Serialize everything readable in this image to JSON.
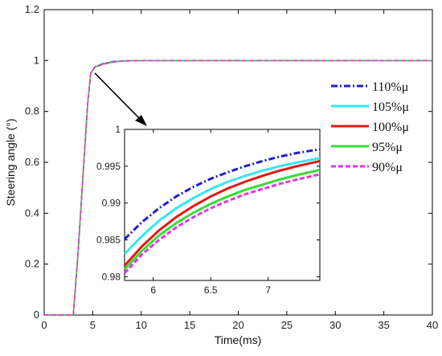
{
  "chart_data": {
    "type": "line",
    "title": "",
    "xlabel": "Time(ms)",
    "ylabel": "Steering angle (°)",
    "xlim": [
      0,
      40
    ],
    "ylim": [
      0,
      1.2
    ],
    "xticks": [
      0,
      5,
      10,
      15,
      20,
      25,
      30,
      35,
      40
    ],
    "yticks": [
      0,
      0.2,
      0.4,
      0.6,
      0.8,
      1,
      1.2
    ],
    "grid": false,
    "legend_position": "right",
    "series": [
      {
        "name": "110%μ",
        "color": "#1f1fd0",
        "dash": "dashdot",
        "x": [
          0,
          3,
          3.5,
          4,
          4.5,
          4.8,
          5.2,
          6,
          7,
          8,
          10,
          15,
          20,
          30,
          40
        ],
        "y": [
          0,
          0,
          0.25,
          0.55,
          0.84,
          0.95,
          0.975,
          0.988,
          0.996,
          0.999,
          1,
          1,
          1,
          1,
          1
        ]
      },
      {
        "name": "105%μ",
        "color": "#33e8f2",
        "dash": "solid",
        "x": [
          0,
          3,
          3.5,
          4,
          4.5,
          4.8,
          5.2,
          6,
          7,
          8,
          10,
          15,
          20,
          30,
          40
        ],
        "y": [
          0,
          0,
          0.25,
          0.55,
          0.84,
          0.95,
          0.975,
          0.987,
          0.995,
          0.999,
          1,
          1,
          1,
          1,
          1
        ]
      },
      {
        "name": "100%μ",
        "color": "#e61717",
        "dash": "solid",
        "x": [
          0,
          3,
          3.5,
          4,
          4.5,
          4.8,
          5.2,
          6,
          7,
          8,
          10,
          15,
          20,
          30,
          40
        ],
        "y": [
          0,
          0,
          0.25,
          0.55,
          0.84,
          0.95,
          0.974,
          0.986,
          0.994,
          0.998,
          1,
          1,
          1,
          1,
          1
        ]
      },
      {
        "name": "95%μ",
        "color": "#33e033",
        "dash": "solid",
        "x": [
          0,
          3,
          3.5,
          4,
          4.5,
          4.8,
          5.2,
          6,
          7,
          8,
          10,
          15,
          20,
          30,
          40
        ],
        "y": [
          0,
          0,
          0.25,
          0.55,
          0.84,
          0.95,
          0.974,
          0.985,
          0.993,
          0.998,
          1,
          1,
          1,
          1,
          1
        ]
      },
      {
        "name": "90%μ",
        "color": "#e633e6",
        "dash": "dashed",
        "x": [
          0,
          3,
          3.5,
          4,
          4.5,
          4.8,
          5.2,
          6,
          7,
          8,
          10,
          15,
          20,
          30,
          40
        ],
        "y": [
          0,
          0,
          0.25,
          0.55,
          0.84,
          0.95,
          0.973,
          0.984,
          0.993,
          0.998,
          1,
          1,
          1,
          1,
          1
        ]
      }
    ],
    "inset": {
      "xlim": [
        5.75,
        7.45
      ],
      "ylim": [
        0.9795,
        1.0
      ],
      "xticks": [
        6,
        6.5,
        7
      ],
      "yticks": [
        0.98,
        0.985,
        0.99,
        0.995,
        1
      ],
      "ytick_labels": [
        "0.98",
        "0.985",
        "0.99",
        "0.995",
        "1"
      ],
      "series_x": [
        5.75,
        5.9,
        6.05,
        6.2,
        6.35,
        6.5,
        6.65,
        6.8,
        6.95,
        7.1,
        7.25,
        7.45
      ],
      "series_y": [
        [
          0.9851,
          0.9874,
          0.9893,
          0.9909,
          0.9922,
          0.9933,
          0.9942,
          0.995,
          0.9957,
          0.9963,
          0.9968,
          0.9973
        ],
        [
          0.9831,
          0.9855,
          0.9876,
          0.9893,
          0.9907,
          0.9919,
          0.9929,
          0.9937,
          0.9944,
          0.995,
          0.9955,
          0.9961
        ],
        [
          0.9815,
          0.9841,
          0.9863,
          0.9881,
          0.9896,
          0.9909,
          0.992,
          0.9929,
          0.9937,
          0.9944,
          0.995,
          0.9957
        ],
        [
          0.981,
          0.9835,
          0.9856,
          0.9873,
          0.9887,
          0.9899,
          0.9909,
          0.9918,
          0.9925,
          0.9932,
          0.9938,
          0.9945
        ],
        [
          0.9805,
          0.983,
          0.985,
          0.9867,
          0.9881,
          0.9893,
          0.9903,
          0.9912,
          0.9919,
          0.9926,
          0.9932,
          0.9939
        ]
      ]
    }
  }
}
